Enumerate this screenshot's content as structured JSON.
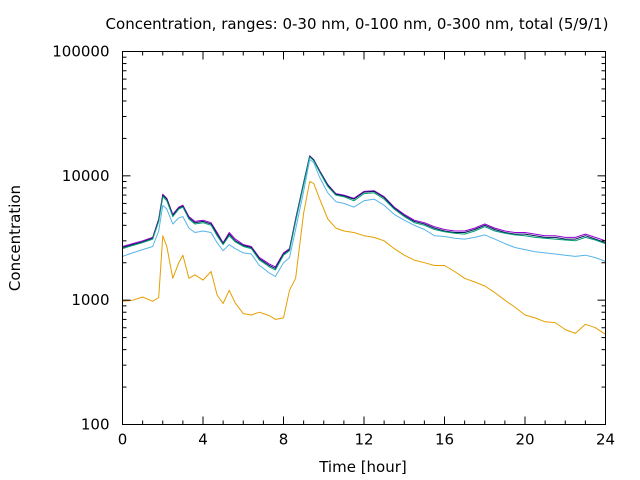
{
  "chart_data": {
    "type": "line",
    "title": "Concentration, ranges: 0-30 nm, 0-100 nm, 0-300 nm, total (5/9/1)",
    "xlabel": "Time [hour]",
    "ylabel": "Concentration",
    "xlim": [
      0,
      24
    ],
    "ylim": [
      100,
      100000
    ],
    "yscale": "log",
    "xticks": [
      0,
      4,
      8,
      12,
      16,
      20,
      24
    ],
    "xtick_labels": [
      "0",
      "4",
      "8",
      "12",
      "16",
      "20",
      "24"
    ],
    "yticks": [
      100,
      1000,
      10000,
      100000
    ],
    "ytick_labels": [
      "100",
      "1000",
      "10000",
      "100000"
    ],
    "grid": false,
    "legend": "none",
    "x": [
      0,
      0.5,
      1,
      1.5,
      1.8,
      2.0,
      2.2,
      2.5,
      2.8,
      3.0,
      3.3,
      3.6,
      4.0,
      4.4,
      4.7,
      5.0,
      5.3,
      5.6,
      6.0,
      6.4,
      6.8,
      7.0,
      7.3,
      7.6,
      8.0,
      8.3,
      8.6,
      9.0,
      9.3,
      9.5,
      9.8,
      10.2,
      10.6,
      11.0,
      11.5,
      12.0,
      12.5,
      13.0,
      13.5,
      14.0,
      14.5,
      15.0,
      15.5,
      16.0,
      16.5,
      17.0,
      17.5,
      18.0,
      18.5,
      19.0,
      19.5,
      20.0,
      20.5,
      21.0,
      21.5,
      22.0,
      22.5,
      23.0,
      23.5,
      24.0
    ],
    "series": [
      {
        "color": "#9400d3",
        "values": [
          2700,
          2850,
          3000,
          3200,
          4500,
          7100,
          6600,
          4900,
          5600,
          5800,
          4700,
          4300,
          4400,
          4200,
          3500,
          2900,
          3500,
          3100,
          2800,
          2700,
          2200,
          2100,
          1950,
          1850,
          2400,
          2600,
          4500,
          8800,
          14500,
          13500,
          11000,
          8500,
          7200,
          7000,
          6600,
          7500,
          7600,
          6800,
          5600,
          4900,
          4400,
          4200,
          3900,
          3700,
          3600,
          3600,
          3800,
          4100,
          3800,
          3600,
          3500,
          3500,
          3400,
          3300,
          3300,
          3200,
          3200,
          3400,
          3200,
          3000
        ]
      },
      {
        "color": "#0a1a5c",
        "values": [
          2650,
          2800,
          2950,
          3150,
          4400,
          7000,
          6500,
          4800,
          5500,
          5700,
          4600,
          4200,
          4300,
          4100,
          3400,
          2850,
          3400,
          3000,
          2750,
          2650,
          2150,
          2050,
          1900,
          1800,
          2350,
          2550,
          4400,
          8700,
          14400,
          13400,
          10900,
          8400,
          7100,
          6900,
          6500,
          7400,
          7500,
          6700,
          5500,
          4800,
          4300,
          4100,
          3800,
          3600,
          3500,
          3500,
          3700,
          4000,
          3700,
          3500,
          3400,
          3400,
          3300,
          3200,
          3200,
          3100,
          3100,
          3300,
          3100,
          2900
        ]
      },
      {
        "color": "#009e73",
        "values": [
          2600,
          2750,
          2900,
          3100,
          4300,
          6800,
          6300,
          4700,
          5400,
          5600,
          4500,
          4100,
          4200,
          4000,
          3300,
          2800,
          3300,
          2950,
          2700,
          2600,
          2100,
          2000,
          1850,
          1750,
          2300,
          2500,
          4300,
          8500,
          14200,
          13200,
          10700,
          8200,
          7000,
          6800,
          6300,
          7200,
          7300,
          6500,
          5400,
          4700,
          4200,
          4000,
          3700,
          3550,
          3450,
          3400,
          3600,
          3900,
          3600,
          3450,
          3350,
          3300,
          3200,
          3150,
          3100,
          3050,
          3000,
          3200,
          3050,
          2850
        ]
      },
      {
        "color": "#56b4e9",
        "values": [
          2250,
          2400,
          2550,
          2700,
          3600,
          5800,
          5400,
          4100,
          4600,
          4700,
          3800,
          3500,
          3600,
          3500,
          2900,
          2500,
          2800,
          2600,
          2400,
          2350,
          1900,
          1800,
          1650,
          1550,
          2000,
          2200,
          3700,
          7500,
          13500,
          12800,
          9700,
          7300,
          6200,
          6000,
          5600,
          6300,
          6500,
          5800,
          4900,
          4400,
          4000,
          3700,
          3300,
          3250,
          3150,
          3100,
          3200,
          3350,
          3100,
          2850,
          2650,
          2550,
          2450,
          2400,
          2350,
          2300,
          2250,
          2300,
          2200,
          2050
        ]
      },
      {
        "color": "#e69f00",
        "values": [
          980,
          1000,
          1060,
          980,
          1050,
          3300,
          2700,
          1500,
          2000,
          2300,
          1500,
          1600,
          1450,
          1700,
          1100,
          940,
          1200,
          950,
          780,
          760,
          800,
          780,
          750,
          700,
          720,
          1200,
          1500,
          5000,
          9000,
          8700,
          6500,
          4500,
          3800,
          3600,
          3500,
          3300,
          3200,
          3000,
          2600,
          2300,
          2100,
          2000,
          1900,
          1900,
          1700,
          1500,
          1400,
          1300,
          1150,
          1000,
          880,
          760,
          720,
          670,
          660,
          580,
          540,
          640,
          600,
          530
        ]
      }
    ]
  }
}
